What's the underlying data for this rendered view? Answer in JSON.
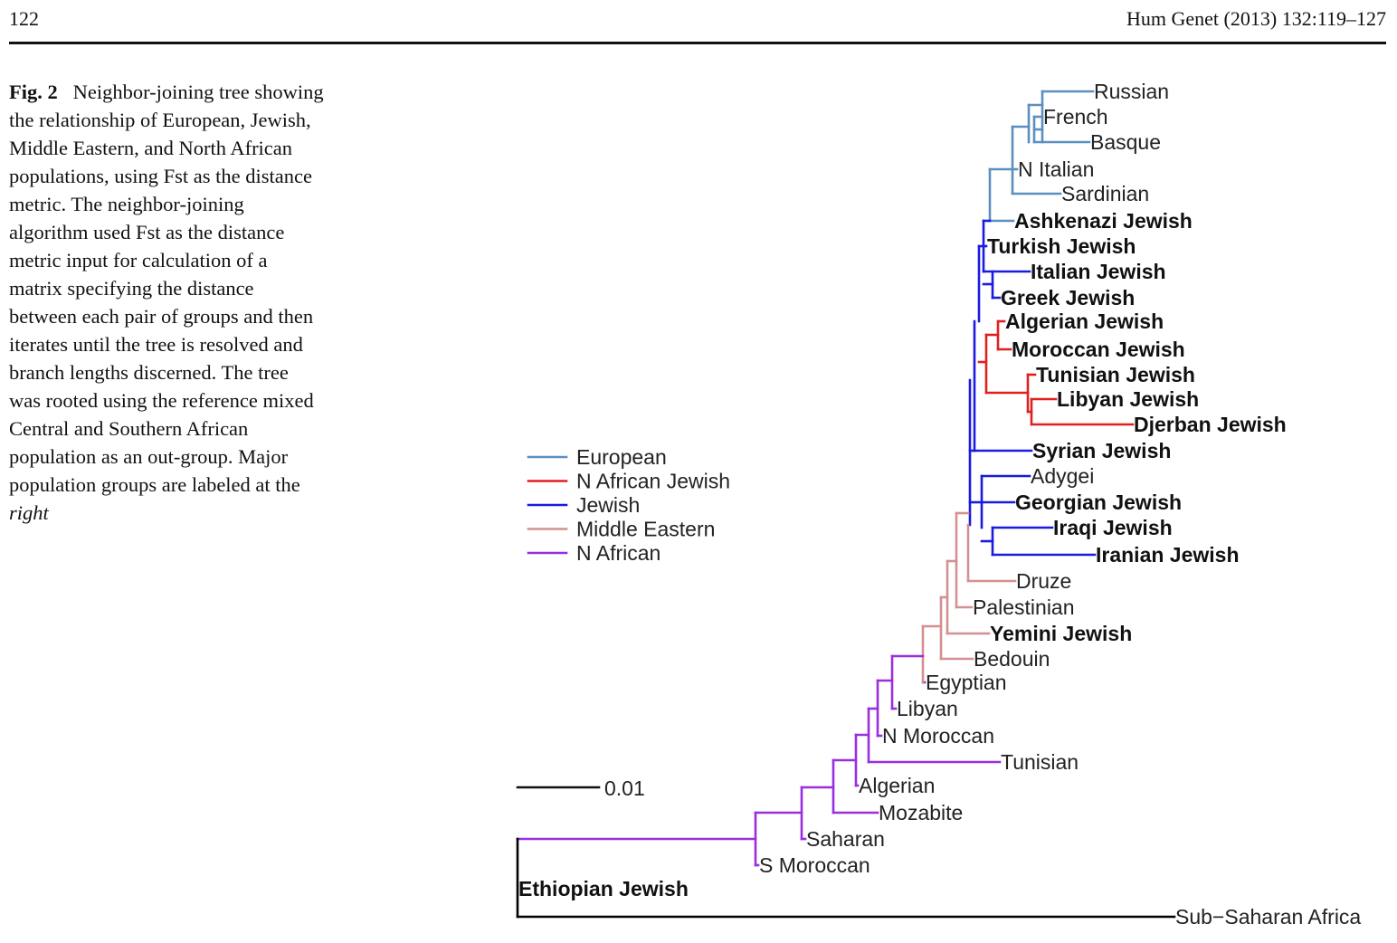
{
  "header": {
    "page_number": "122",
    "journal": "Hum Genet (2013) 132:119–127"
  },
  "caption": {
    "fig_label": "Fig. 2",
    "text": "Neighbor-joining tree showing the relationship of European, Jewish, Middle Eastern, and North African populations, using Fst as the distance metric. The neighbor-joining algorithm used Fst as the distance metric input for calculation of a matrix specifying the distance between each pair of groups and then iterates until the tree is resolved and branch lengths discerned. The tree was rooted using the reference mixed Central and Southern African population as an out-group. Major population groups are labeled at the",
    "emph": "right"
  },
  "colors": {
    "European": "#5b8fc0",
    "N African Jewish": "#e02020",
    "Jewish": "#1a1ae0",
    "Middle Eastern": "#d49090",
    "N African": "#9a2ee0",
    "outgroup": "#000000"
  },
  "legend": [
    {
      "label": "European",
      "color": "#5b8fc0"
    },
    {
      "label": "N African Jewish",
      "color": "#e02020"
    },
    {
      "label": "Jewish",
      "color": "#1a1ae0"
    },
    {
      "label": "Middle Eastern",
      "color": "#d49090"
    },
    {
      "label": "N African",
      "color": "#9a2ee0"
    }
  ],
  "scale_bar": {
    "label": "0.01"
  },
  "tree": {
    "leaves": [
      {
        "name": "Russian",
        "group": "European",
        "bold": false
      },
      {
        "name": "French",
        "group": "European",
        "bold": false
      },
      {
        "name": "Basque",
        "group": "European",
        "bold": false
      },
      {
        "name": "N Italian",
        "group": "European",
        "bold": false
      },
      {
        "name": "Sardinian",
        "group": "European",
        "bold": false
      },
      {
        "name": "Ashkenazi Jewish",
        "group": "European",
        "bold": true
      },
      {
        "name": "Turkish Jewish",
        "group": "Jewish",
        "bold": true
      },
      {
        "name": "Italian Jewish",
        "group": "Jewish",
        "bold": true
      },
      {
        "name": "Greek Jewish",
        "group": "Jewish",
        "bold": true
      },
      {
        "name": "Algerian Jewish",
        "group": "N African Jewish",
        "bold": true
      },
      {
        "name": "Moroccan Jewish",
        "group": "N African Jewish",
        "bold": true
      },
      {
        "name": "Tunisian Jewish",
        "group": "N African Jewish",
        "bold": true
      },
      {
        "name": "Libyan Jewish",
        "group": "N African Jewish",
        "bold": true
      },
      {
        "name": "Djerban Jewish",
        "group": "N African Jewish",
        "bold": true
      },
      {
        "name": "Syrian Jewish",
        "group": "Jewish",
        "bold": true
      },
      {
        "name": "Adygei",
        "group": "Jewish",
        "bold": false
      },
      {
        "name": "Georgian Jewish",
        "group": "Jewish",
        "bold": true
      },
      {
        "name": "Iraqi Jewish",
        "group": "Jewish",
        "bold": true
      },
      {
        "name": "Iranian Jewish",
        "group": "Jewish",
        "bold": true
      },
      {
        "name": "Druze",
        "group": "Middle Eastern",
        "bold": false
      },
      {
        "name": "Palestinian",
        "group": "Middle Eastern",
        "bold": false
      },
      {
        "name": "Yemini Jewish",
        "group": "Middle Eastern",
        "bold": true
      },
      {
        "name": "Bedouin",
        "group": "Middle Eastern",
        "bold": false
      },
      {
        "name": "Egyptian",
        "group": "N African",
        "bold": false
      },
      {
        "name": "Libyan",
        "group": "N African",
        "bold": false
      },
      {
        "name": "N Moroccan",
        "group": "N African",
        "bold": false
      },
      {
        "name": "Tunisian",
        "group": "N African",
        "bold": false
      },
      {
        "name": "Algerian",
        "group": "N African",
        "bold": false
      },
      {
        "name": "Mozabite",
        "group": "N African",
        "bold": false
      },
      {
        "name": "Saharan",
        "group": "N African",
        "bold": false
      },
      {
        "name": "S Moroccan",
        "group": "N African",
        "bold": false
      },
      {
        "name": "Ethiopian Jewish",
        "group": "outgroup",
        "bold": true
      },
      {
        "name": "Sub−Saharan Africa",
        "group": "outgroup",
        "bold": false
      }
    ]
  }
}
